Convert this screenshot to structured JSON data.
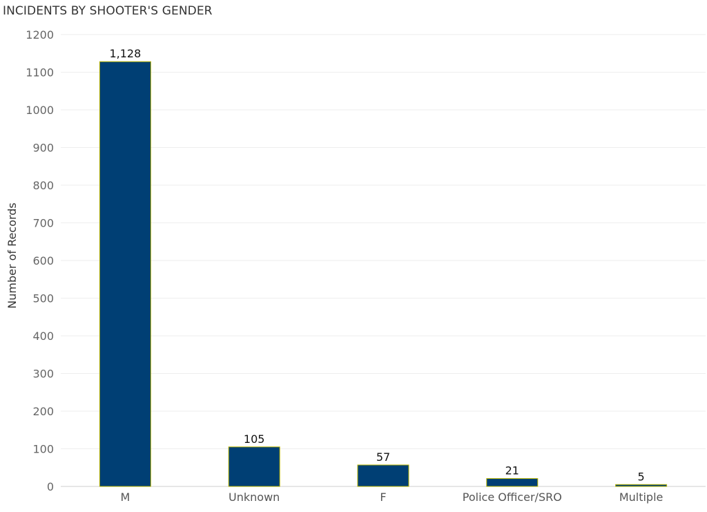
{
  "chart_data": {
    "type": "bar",
    "title": "INCIDENTS BY SHOOTER'S GENDER",
    "ylabel": "Number of Records",
    "xlabel": "",
    "categories": [
      "M",
      "Unknown",
      "F",
      "Police Officer/SRO",
      "Multiple"
    ],
    "values": [
      1128,
      105,
      57,
      21,
      5
    ],
    "data_labels": [
      "1,128",
      "105",
      "57",
      "21",
      "5"
    ],
    "ylim": [
      0,
      1200
    ],
    "yticks": [
      0,
      100,
      200,
      300,
      400,
      500,
      600,
      700,
      800,
      900,
      1000,
      1100,
      1200
    ],
    "grid": true,
    "legend": "none",
    "colors": {
      "bar_fill": "#003f74",
      "bar_stroke": "#b8b400",
      "grid": "#eeeeee",
      "axis": "#cccccc"
    }
  }
}
